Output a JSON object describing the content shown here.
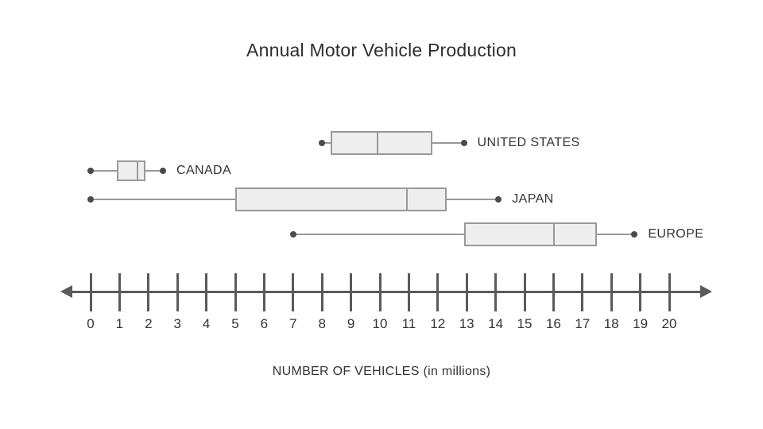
{
  "title": "Annual Motor Vehicle Production",
  "axis_caption": "NUMBER OF VEHICLES (in millions)",
  "colors": {
    "box_fill": "#eeeeee",
    "box_border": "#999999",
    "whisker": "#999999",
    "dot": "#4a4a4a",
    "axis": "#5a5a5a",
    "text": "#333333"
  },
  "chart_data": {
    "type": "boxplot",
    "orientation": "horizontal",
    "title": "Annual Motor Vehicle Production",
    "xlabel": "NUMBER OF VEHICLES (in millions)",
    "xlim": [
      0,
      20
    ],
    "tick_step": 1,
    "tick_labels": [
      "0",
      "1",
      "2",
      "3",
      "4",
      "5",
      "6",
      "7",
      "8",
      "9",
      "10",
      "11",
      "12",
      "13",
      "14",
      "15",
      "16",
      "17",
      "18",
      "19",
      "20"
    ],
    "grid": false,
    "series": [
      {
        "name": "UNITED STATES",
        "min": 8.0,
        "q1": 8.3,
        "median": 9.9,
        "q3": 11.8,
        "max": 12.9
      },
      {
        "name": "CANADA",
        "min": 0.0,
        "q1": 0.9,
        "median": 1.6,
        "q3": 1.9,
        "max": 2.5
      },
      {
        "name": "JAPAN",
        "min": 0.0,
        "q1": 5.0,
        "median": 10.9,
        "q3": 12.3,
        "max": 14.1
      },
      {
        "name": "EUROPE",
        "min": 7.0,
        "q1": 12.9,
        "median": 16.0,
        "q3": 17.5,
        "max": 18.8
      }
    ]
  }
}
